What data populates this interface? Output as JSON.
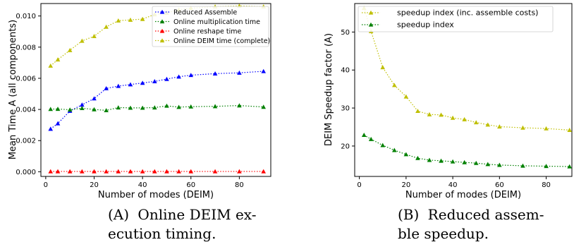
{
  "chart_data": [
    {
      "type": "line",
      "xlabel": "Number of modes (DEIM)",
      "ylabel": "Mean Time A (all components)",
      "xlim": [
        -2,
        93
      ],
      "ylim": [
        -0.0003,
        0.0108
      ],
      "xticks": [
        "0",
        "20",
        "40",
        "60",
        "80"
      ],
      "xtick_values": [
        0,
        20,
        40,
        60,
        80
      ],
      "yticks": [
        "0.000",
        "0.002",
        "0.004",
        "0.006",
        "0.008",
        "0.010"
      ],
      "ytick_values": [
        0,
        0.002,
        0.004,
        0.006,
        0.008,
        0.01
      ],
      "legend_placement": "top-right",
      "x": [
        2,
        5,
        10,
        15,
        20,
        25,
        30,
        35,
        40,
        45,
        50,
        55,
        60,
        70,
        80,
        90
      ],
      "series": [
        {
          "name": "Reduced Assemble",
          "color": "#0000ff",
          "values": [
            0.00275,
            0.0031,
            0.0039,
            0.0043,
            0.0047,
            0.00535,
            0.0055,
            0.0056,
            0.0057,
            0.0058,
            0.00595,
            0.0061,
            0.0062,
            0.0063,
            0.00635,
            0.00645
          ]
        },
        {
          "name": "Online multiplication time",
          "color": "#008000",
          "values": [
            0.00402,
            0.00403,
            0.00398,
            0.00408,
            0.004,
            0.00394,
            0.00412,
            0.0041,
            0.0041,
            0.00412,
            0.00423,
            0.00415,
            0.00418,
            0.0042,
            0.00425,
            0.00416
          ]
        },
        {
          "name": "Online reshape time",
          "color": "#ff0000",
          "values": [
            2e-05,
            2e-05,
            2e-05,
            2e-05,
            2e-05,
            2e-05,
            2e-05,
            2e-05,
            2e-05,
            2e-05,
            2e-05,
            2e-05,
            2e-05,
            2e-05,
            2e-05,
            2e-05
          ]
        },
        {
          "name": "Online DEIM time (complete)",
          "color": "#bfbf00",
          "values": [
            0.0068,
            0.0072,
            0.0078,
            0.0084,
            0.0087,
            0.0093,
            0.0097,
            0.00975,
            0.0098,
            0.0101,
            0.0102,
            0.0104,
            0.0105,
            0.0106,
            0.01065,
            0.0106
          ]
        }
      ]
    },
    {
      "type": "line",
      "xlabel": "Number of modes (DEIM)",
      "ylabel": "DEIM Speedup factor (A)",
      "xlim": [
        -2,
        91
      ],
      "ylim": [
        12,
        57.5
      ],
      "xticks": [
        "0",
        "20",
        "40",
        "60",
        "80"
      ],
      "xtick_values": [
        0,
        20,
        40,
        60,
        80
      ],
      "yticks": [
        "20",
        "30",
        "40",
        "50"
      ],
      "ytick_values": [
        20,
        30,
        40,
        50
      ],
      "legend_placement": "top-right",
      "x": [
        2,
        5,
        10,
        15,
        20,
        25,
        30,
        35,
        40,
        45,
        50,
        55,
        60,
        70,
        80,
        90
      ],
      "series": [
        {
          "name": "speedup index (inc. assemble costs)",
          "color": "#bfbf00",
          "values": [
            56.3,
            50.2,
            40.7,
            36.0,
            33.0,
            29.2,
            28.3,
            28.2,
            27.4,
            27.0,
            26.2,
            25.6,
            25.1,
            24.8,
            24.6,
            24.2
          ]
        },
        {
          "name": "speedup index",
          "color": "#008000",
          "values": [
            22.9,
            21.8,
            20.2,
            18.9,
            17.8,
            16.8,
            16.3,
            16.1,
            15.9,
            15.7,
            15.5,
            15.2,
            15.0,
            14.8,
            14.7,
            14.6
          ]
        }
      ]
    }
  ],
  "captions": [
    {
      "label": "(A)",
      "line1": "Online DEIM ex-",
      "line2": "ecution timing."
    },
    {
      "label": "(B)",
      "line1": "Reduced assem-",
      "line2": "ble speedup."
    }
  ]
}
